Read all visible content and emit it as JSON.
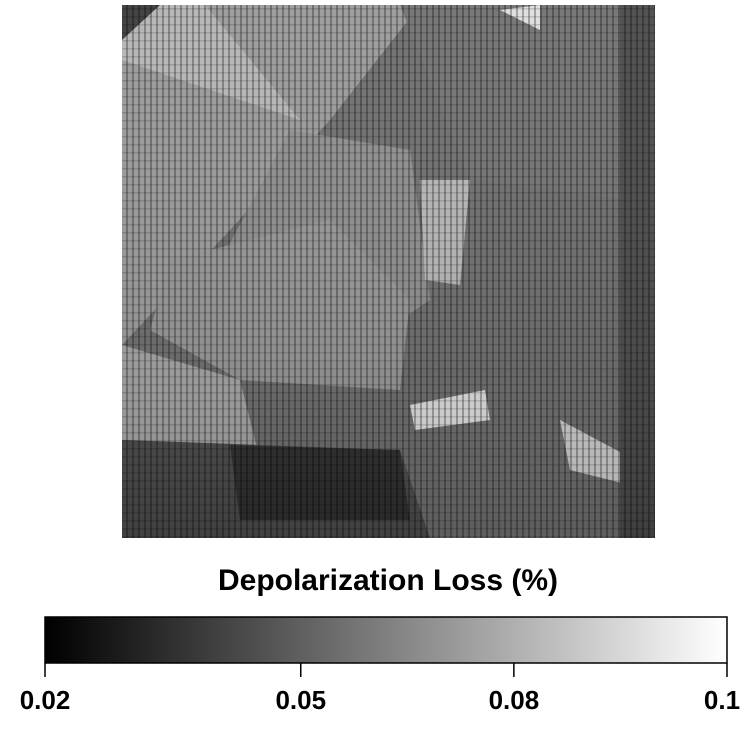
{
  "chart_data": {
    "type": "heatmap",
    "colorbar": {
      "label": "Depolarization Loss  (%)",
      "lim": [
        0.02,
        0.1
      ],
      "ticks": [
        0.02,
        0.05,
        {
          "value": 0.075,
          "label": "0.08"
        },
        0.1
      ],
      "colormap": [
        "#000000",
        "#ffffff"
      ]
    }
  }
}
